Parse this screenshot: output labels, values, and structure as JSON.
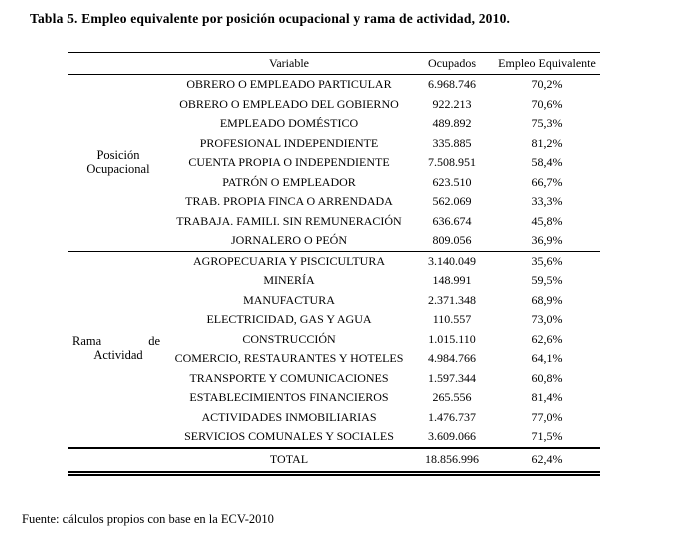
{
  "title": "Tabla 5. Empleo equivalente por posición ocupacional y rama de actividad, 2010.",
  "table": {
    "headers": {
      "variable": "Variable",
      "ocupados": "Ocupados",
      "empleo": "Empleo Equivalente"
    },
    "groups": [
      {
        "label": "Posición Ocupacional",
        "label_lines": [
          "Posición",
          "Ocupacional"
        ],
        "spread_first_line": false,
        "rows": [
          {
            "variable": "OBRERO O EMPLEADO PARTICULAR",
            "ocupados": "6.968.746",
            "empleo": "70,2%"
          },
          {
            "variable": "OBRERO O EMPLEADO DEL GOBIERNO",
            "ocupados": "922.213",
            "empleo": "70,6%"
          },
          {
            "variable": "EMPLEADO DOMÉSTICO",
            "ocupados": "489.892",
            "empleo": "75,3%"
          },
          {
            "variable": "PROFESIONAL INDEPENDIENTE",
            "ocupados": "335.885",
            "empleo": "81,2%"
          },
          {
            "variable": "CUENTA PROPIA O INDEPENDIENTE",
            "ocupados": "7.508.951",
            "empleo": "58,4%"
          },
          {
            "variable": "PATRÓN O EMPLEADOR",
            "ocupados": "623.510",
            "empleo": "66,7%"
          },
          {
            "variable": "TRAB. PROPIA FINCA O ARRENDADA",
            "ocupados": "562.069",
            "empleo": "33,3%"
          },
          {
            "variable": "TRABAJA. FAMILI. SIN REMUNERACIÓN",
            "ocupados": "636.674",
            "empleo": "45,8%"
          },
          {
            "variable": "JORNALERO O PEÓN",
            "ocupados": "809.056",
            "empleo": "36,9%"
          }
        ]
      },
      {
        "label": "Rama de Actividad",
        "label_lines": [
          "Rama de",
          "Actividad"
        ],
        "spread_first_line": true,
        "rows": [
          {
            "variable": "AGROPECUARIA Y PISCICULTURA",
            "ocupados": "3.140.049",
            "empleo": "35,6%"
          },
          {
            "variable": "MINERÍA",
            "ocupados": "148.991",
            "empleo": "59,5%"
          },
          {
            "variable": "MANUFACTURA",
            "ocupados": "2.371.348",
            "empleo": "68,9%"
          },
          {
            "variable": "ELECTRICIDAD, GAS Y AGUA",
            "ocupados": "110.557",
            "empleo": "73,0%"
          },
          {
            "variable": "CONSTRUCCIÓN",
            "ocupados": "1.015.110",
            "empleo": "62,6%"
          },
          {
            "variable": "COMERCIO, RESTAURANTES Y HOTELES",
            "ocupados": "4.984.766",
            "empleo": "64,1%"
          },
          {
            "variable": "TRANSPORTE Y COMUNICACIONES",
            "ocupados": "1.597.344",
            "empleo": "60,8%"
          },
          {
            "variable": "ESTABLECIMIENTOS FINANCIEROS",
            "ocupados": "265.556",
            "empleo": "81,4%"
          },
          {
            "variable": "ACTIVIDADES INMOBILIARIAS",
            "ocupados": "1.476.737",
            "empleo": "77,0%"
          },
          {
            "variable": "SERVICIOS COMUNALES Y SOCIALES",
            "ocupados": "3.609.066",
            "empleo": "71,5%"
          }
        ]
      }
    ],
    "total": {
      "label": "TOTAL",
      "ocupados": "18.856.996",
      "empleo": "62,4%"
    }
  },
  "footer": "Fuente: cálculos propios con base en la ECV-2010"
}
